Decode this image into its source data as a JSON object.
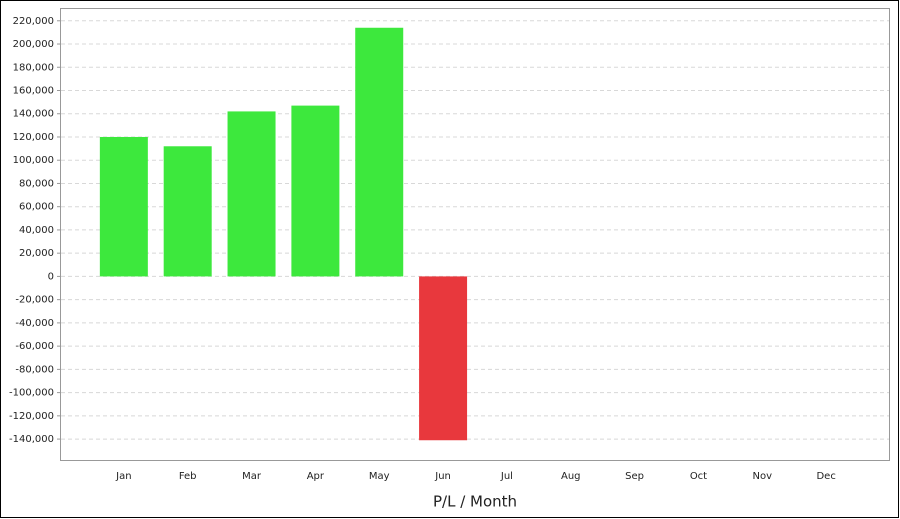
{
  "chart_data": {
    "type": "bar",
    "x_label": "P/L / Month",
    "categories": [
      "Jan",
      "Feb",
      "Mar",
      "Apr",
      "May",
      "Jun",
      "Jul",
      "Aug",
      "Sep",
      "Oct",
      "Nov",
      "Dec"
    ],
    "values": [
      120000,
      112000,
      142000,
      147000,
      214000,
      -141000,
      null,
      null,
      null,
      null,
      null,
      null
    ],
    "positive_color": "#3de83d",
    "negative_color": "#e8383d",
    "ylim": [
      -158000,
      231000
    ],
    "yticks": [
      {
        "value": -140000,
        "label": "-140,000"
      },
      {
        "value": -120000,
        "label": "-120,000"
      },
      {
        "value": -100000,
        "label": "-100,000"
      },
      {
        "value": -80000,
        "label": "-80,000"
      },
      {
        "value": -60000,
        "label": "-60,000"
      },
      {
        "value": -40000,
        "label": "-40,000"
      },
      {
        "value": -20000,
        "label": "-20,000"
      },
      0,
      {
        "value": 20000,
        "label": "20,000"
      },
      {
        "value": 40000,
        "label": "40,000"
      },
      {
        "value": 60000,
        "label": "60,000"
      },
      {
        "value": 80000,
        "label": "80,000"
      },
      {
        "value": 100000,
        "label": "100,000"
      },
      {
        "value": 120000,
        "label": "120,000"
      },
      {
        "value": 140000,
        "label": "140,000"
      },
      {
        "value": 160000,
        "label": "160,000"
      },
      {
        "value": 180000,
        "label": "180,000"
      },
      {
        "value": 200000,
        "label": "200,000"
      },
      {
        "value": 220000,
        "label": "220,000"
      }
    ],
    "grid": true
  }
}
